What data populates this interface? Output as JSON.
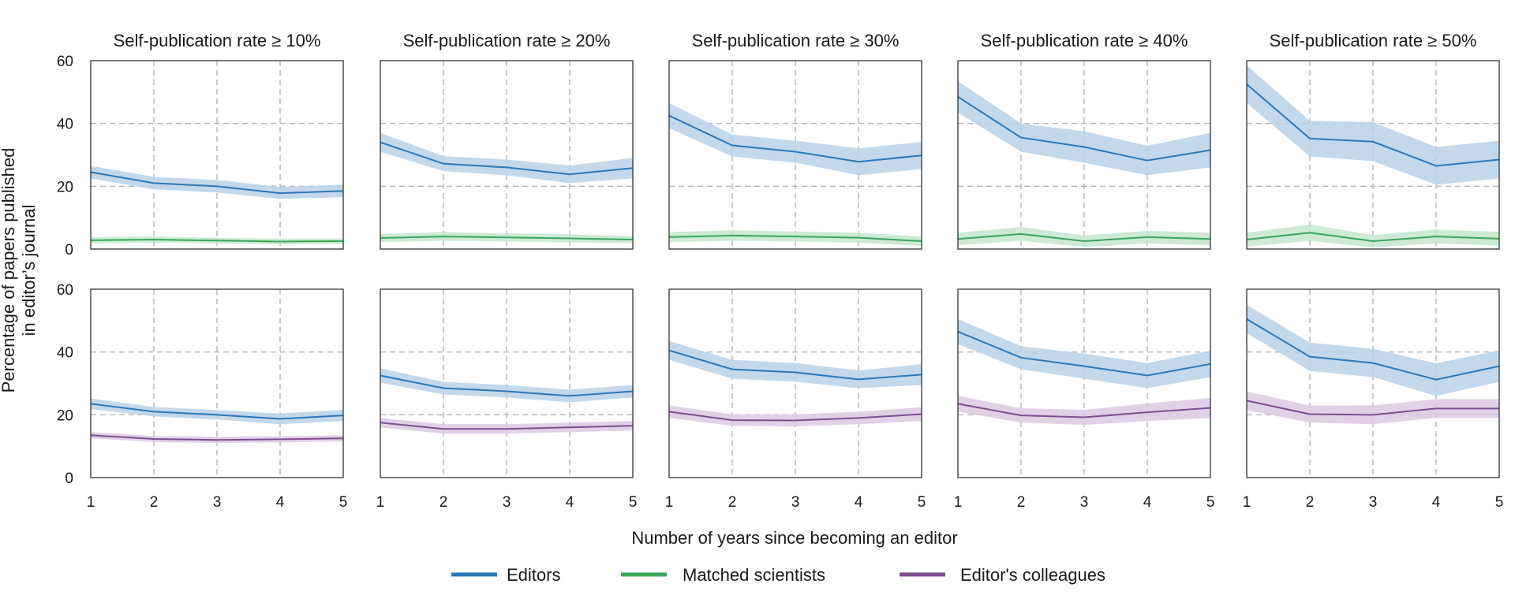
{
  "figure": {
    "ylabel_line1": "Percentage of papers published",
    "ylabel_line2": "in editor’s journal",
    "xlabel": "Number of years since becoming an editor"
  },
  "legend": [
    {
      "label": "Editors",
      "color": "#2b78b8"
    },
    {
      "label": "Matched scientists",
      "color": "#3aa65c"
    },
    {
      "label": "Editor's colleagues",
      "color": "#7d4e8f"
    }
  ],
  "colors": {
    "editors_band": "#b9d1e8",
    "matched_band": "#c4e6cc",
    "colleagues_band": "#dcc9e2"
  },
  "chart_data": {
    "type": "line",
    "x": [
      1,
      2,
      3,
      4,
      5
    ],
    "x_ticks": [
      "1",
      "2",
      "3",
      "4",
      "5"
    ],
    "y_ticks": [
      "0",
      "20",
      "40",
      "60"
    ],
    "ylim": [
      0,
      60
    ],
    "xlim": [
      1,
      5
    ],
    "grid": true,
    "legend_position": "bottom",
    "columns": [
      "Self-publication rate ≥ 10%",
      "Self-publication rate ≥ 20%",
      "Self-publication rate ≥ 30%",
      "Self-publication rate ≥ 40%",
      "Self-publication rate ≥ 50%"
    ],
    "rows": [
      {
        "panels": [
          {
            "series": [
              {
                "name": "Editors",
                "values": [
                  24.5,
                  21,
                  20,
                  17.8,
                  18.5
                ],
                "lower": [
                  22.5,
                  19,
                  18,
                  16,
                  16.5
                ],
                "upper": [
                  26.5,
                  23,
                  22,
                  19.8,
                  20.5
                ]
              },
              {
                "name": "Matched scientists",
                "values": [
                  2.8,
                  3,
                  2.7,
                  2.4,
                  2.5
                ],
                "lower": [
                  1.8,
                  2,
                  1.8,
                  1.5,
                  1.6
                ],
                "upper": [
                  3.8,
                  4,
                  3.6,
                  3.3,
                  3.4
                ]
              }
            ]
          },
          {
            "series": [
              {
                "name": "Editors",
                "values": [
                  34,
                  27.2,
                  26,
                  23.8,
                  25.8
                ],
                "lower": [
                  31,
                  24.8,
                  23.5,
                  21,
                  22.5
                ],
                "upper": [
                  37,
                  29.6,
                  28.5,
                  26.6,
                  29
                ]
              },
              {
                "name": "Matched scientists",
                "values": [
                  3.5,
                  4,
                  3.7,
                  3.4,
                  3
                ],
                "lower": [
                  2.2,
                  2.6,
                  2.4,
                  2.1,
                  1.9
                ],
                "upper": [
                  4.8,
                  5.4,
                  5,
                  4.7,
                  4.1
                ]
              }
            ]
          },
          {
            "series": [
              {
                "name": "Editors",
                "values": [
                  42.5,
                  33,
                  31,
                  27.8,
                  29.8
                ],
                "lower": [
                  38.5,
                  29.5,
                  27.5,
                  23.5,
                  25.5
                ],
                "upper": [
                  46.5,
                  36.5,
                  34.5,
                  32.1,
                  34.1
                ]
              },
              {
                "name": "Matched scientists",
                "values": [
                  3.8,
                  4.3,
                  4,
                  3.6,
                  2.5
                ],
                "lower": [
                  2.2,
                  2.6,
                  2.4,
                  2,
                  1
                ],
                "upper": [
                  5.4,
                  6,
                  5.6,
                  5.2,
                  4
                ]
              }
            ]
          },
          {
            "series": [
              {
                "name": "Editors",
                "values": [
                  48.5,
                  35.5,
                  32.5,
                  28.2,
                  31.5
                ],
                "lower": [
                  43.5,
                  31,
                  27.5,
                  23.5,
                  26
                ],
                "upper": [
                  53.5,
                  40,
                  37.5,
                  32.9,
                  37
                ]
              },
              {
                "name": "Matched scientists",
                "values": [
                  3.2,
                  4.8,
                  2.5,
                  3.8,
                  3.2
                ],
                "lower": [
                  1.2,
                  2.6,
                  0.7,
                  1.8,
                  1.2
                ],
                "upper": [
                  5.2,
                  7,
                  4.3,
                  5.8,
                  5.2
                ]
              }
            ]
          },
          {
            "series": [
              {
                "name": "Editors",
                "values": [
                  52.5,
                  35.2,
                  34.2,
                  26.5,
                  28.5
                ],
                "lower": [
                  46.5,
                  29.5,
                  28,
                  20.5,
                  22.5
                ],
                "upper": [
                  58.5,
                  40.9,
                  40.4,
                  32.5,
                  34.5
                ]
              },
              {
                "name": "Matched scientists",
                "values": [
                  3,
                  5.2,
                  2.5,
                  4,
                  3.3
                ],
                "lower": [
                  0.8,
                  2.6,
                  0.5,
                  1.8,
                  1.1
                ],
                "upper": [
                  5.2,
                  7.8,
                  4.5,
                  6.2,
                  5.5
                ]
              }
            ]
          }
        ]
      },
      {
        "panels": [
          {
            "series": [
              {
                "name": "Editors",
                "values": [
                  23.5,
                  21,
                  20,
                  18.7,
                  19.8
                ],
                "lower": [
                  21.8,
                  19.5,
                  18.5,
                  17,
                  18
                ],
                "upper": [
                  25.2,
                  22.5,
                  21.5,
                  20.4,
                  21.6
                ]
              },
              {
                "name": "Editor's colleagues",
                "values": [
                  13.5,
                  12.3,
                  12,
                  12.2,
                  12.5
                ],
                "lower": [
                  12.5,
                  11.3,
                  11,
                  11.2,
                  11.5
                ],
                "upper": [
                  14.5,
                  13.3,
                  13,
                  13.2,
                  13.5
                ]
              }
            ]
          },
          {
            "series": [
              {
                "name": "Editors",
                "values": [
                  32.5,
                  28.5,
                  27.5,
                  26,
                  27.5
                ],
                "lower": [
                  30.2,
                  26.5,
                  25.5,
                  24,
                  25.5
                ],
                "upper": [
                  34.8,
                  30.5,
                  29.5,
                  28,
                  29.5
                ]
              },
              {
                "name": "Editor's colleagues",
                "values": [
                  17.5,
                  15.5,
                  15.5,
                  16,
                  16.5
                ],
                "lower": [
                  16,
                  14,
                  14,
                  14.5,
                  15
                ],
                "upper": [
                  19,
                  17,
                  17,
                  17.5,
                  18
                ]
              }
            ]
          },
          {
            "series": [
              {
                "name": "Editors",
                "values": [
                  40.5,
                  34.5,
                  33.5,
                  31.3,
                  32.8
                ],
                "lower": [
                  37.5,
                  31.5,
                  30.5,
                  28.5,
                  29.5
                ],
                "upper": [
                  43.5,
                  37.5,
                  36.5,
                  34.1,
                  36.1
                ]
              },
              {
                "name": "Editor's colleagues",
                "values": [
                  21,
                  18.3,
                  18.2,
                  19,
                  20.2
                ],
                "lower": [
                  19,
                  16.5,
                  16.3,
                  17,
                  18
                ],
                "upper": [
                  23,
                  20.1,
                  20.1,
                  21,
                  22.4
                ]
              }
            ]
          },
          {
            "series": [
              {
                "name": "Editors",
                "values": [
                  46.5,
                  38.2,
                  35.5,
                  32.5,
                  36.2
                ],
                "lower": [
                  42.5,
                  34.5,
                  31.5,
                  28.5,
                  32
                ],
                "upper": [
                  50.5,
                  41.9,
                  39.5,
                  36.5,
                  40.4
                ]
              },
              {
                "name": "Editor's colleagues",
                "values": [
                  23.5,
                  19.8,
                  19.2,
                  20.8,
                  22.2
                ],
                "lower": [
                  21,
                  17.5,
                  16.8,
                  18,
                  19
                ],
                "upper": [
                  26,
                  22.1,
                  21.6,
                  23.6,
                  25.4
                ]
              }
            ]
          },
          {
            "series": [
              {
                "name": "Editors",
                "values": [
                  50.5,
                  38.5,
                  36.5,
                  31.2,
                  35.5
                ],
                "lower": [
                  46,
                  34,
                  32,
                  26,
                  30.5
                ],
                "upper": [
                  55,
                  43,
                  41,
                  36.4,
                  40.5
                ]
              },
              {
                "name": "Editor's colleagues",
                "values": [
                  24.5,
                  20.2,
                  20,
                  22,
                  22
                ],
                "lower": [
                  21.5,
                  17.5,
                  17,
                  19,
                  19
                ],
                "upper": [
                  27.5,
                  22.9,
                  23,
                  25,
                  25
                ]
              }
            ]
          }
        ]
      }
    ]
  }
}
